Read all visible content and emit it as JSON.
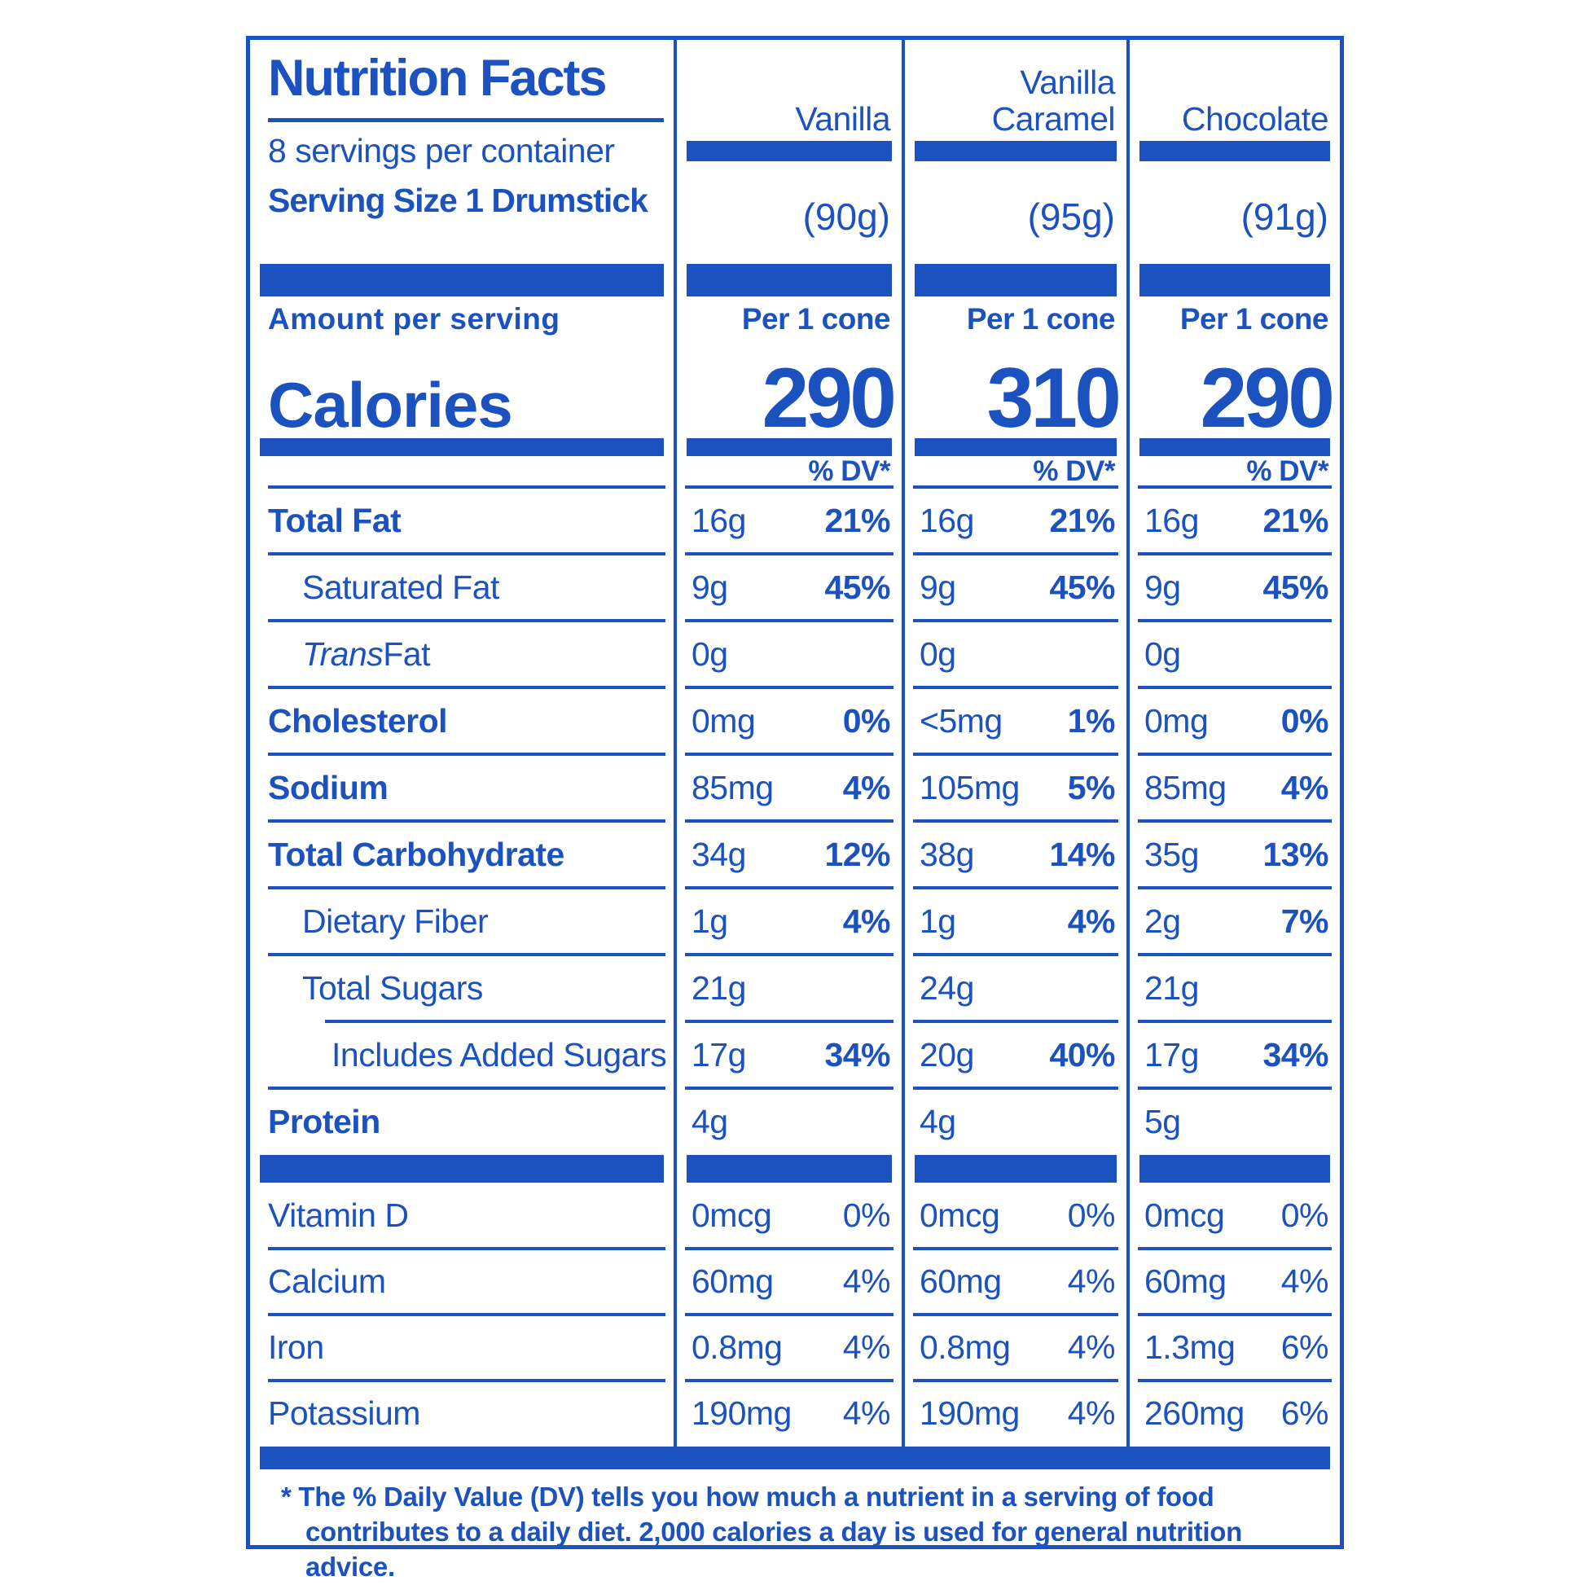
{
  "colors": {
    "blue": "#1b52bf",
    "background": "#ffffff"
  },
  "label": {
    "title": "Nutrition Facts",
    "servings_per_container": "8 servings per container",
    "serving_size": "Serving Size 1 Drumstick",
    "amount_per_serving": "Amount per serving",
    "calories_word": "Calories",
    "dv_header": "% DV*"
  },
  "flavors": [
    {
      "name": "Vanilla",
      "size": "(90g)",
      "per": "Per 1 cone",
      "calories": "290"
    },
    {
      "name": "Vanilla Caramel",
      "size": "(95g)",
      "per": "Per 1 cone",
      "calories": "310"
    },
    {
      "name": "Chocolate",
      "size": "(91g)",
      "per": "Per 1 cone",
      "calories": "290"
    }
  ],
  "nutrients": [
    {
      "label": "Total Fat",
      "values": [
        {
          "amt": "16g",
          "dv": "21%"
        },
        {
          "amt": "16g",
          "dv": "21%"
        },
        {
          "amt": "16g",
          "dv": "21%"
        }
      ]
    },
    {
      "label": "Saturated Fat",
      "values": [
        {
          "amt": "9g",
          "dv": "45%"
        },
        {
          "amt": "9g",
          "dv": "45%"
        },
        {
          "amt": "9g",
          "dv": "45%"
        }
      ]
    },
    {
      "label_italic": "Trans",
      "label": " Fat",
      "values": [
        {
          "amt": "0g"
        },
        {
          "amt": "0g"
        },
        {
          "amt": "0g"
        }
      ]
    },
    {
      "label": "Cholesterol",
      "values": [
        {
          "amt": "0mg",
          "dv": "0%"
        },
        {
          "amt": "<5mg",
          "dv": "1%"
        },
        {
          "amt": "0mg",
          "dv": "0%"
        }
      ]
    },
    {
      "label": "Sodium",
      "values": [
        {
          "amt": "85mg",
          "dv": "4%"
        },
        {
          "amt": "105mg",
          "dv": "5%"
        },
        {
          "amt": "85mg",
          "dv": "4%"
        }
      ]
    },
    {
      "label": "Total Carbohydrate",
      "values": [
        {
          "amt": "34g",
          "dv": "12%"
        },
        {
          "amt": "38g",
          "dv": "14%"
        },
        {
          "amt": "35g",
          "dv": "13%"
        }
      ]
    },
    {
      "label": "Dietary Fiber",
      "values": [
        {
          "amt": "1g",
          "dv": "4%"
        },
        {
          "amt": "1g",
          "dv": "4%"
        },
        {
          "amt": "2g",
          "dv": "7%"
        }
      ]
    },
    {
      "label": "Total Sugars",
      "values": [
        {
          "amt": "21g"
        },
        {
          "amt": "24g"
        },
        {
          "amt": "21g"
        }
      ]
    },
    {
      "label": "Includes Added Sugars",
      "values": [
        {
          "amt": "17g",
          "dv": "34%"
        },
        {
          "amt": "20g",
          "dv": "40%"
        },
        {
          "amt": "17g",
          "dv": "34%"
        }
      ]
    },
    {
      "label": "Protein",
      "values": [
        {
          "amt": "4g"
        },
        {
          "amt": "4g"
        },
        {
          "amt": "5g"
        }
      ]
    }
  ],
  "micronutrients": [
    {
      "label": "Vitamin D",
      "values": [
        {
          "amt": "0mcg",
          "dv": "0%"
        },
        {
          "amt": "0mcg",
          "dv": "0%"
        },
        {
          "amt": "0mcg",
          "dv": "0%"
        }
      ]
    },
    {
      "label": "Calcium",
      "values": [
        {
          "amt": "60mg",
          "dv": "4%"
        },
        {
          "amt": "60mg",
          "dv": "4%"
        },
        {
          "amt": "60mg",
          "dv": "4%"
        }
      ]
    },
    {
      "label": "Iron",
      "values": [
        {
          "amt": "0.8mg",
          "dv": "4%"
        },
        {
          "amt": "0.8mg",
          "dv": "4%"
        },
        {
          "amt": "1.3mg",
          "dv": "6%"
        }
      ]
    },
    {
      "label": "Potassium",
      "values": [
        {
          "amt": "190mg",
          "dv": "4%"
        },
        {
          "amt": "190mg",
          "dv": "4%"
        },
        {
          "amt": "260mg",
          "dv": "6%"
        }
      ]
    }
  ],
  "footnote": {
    "line1": "* The % Daily Value (DV) tells you how much a nutrient in a serving of food",
    "line2": "contributes to a daily diet. 2,000 calories a day is used for general nutrition advice."
  }
}
